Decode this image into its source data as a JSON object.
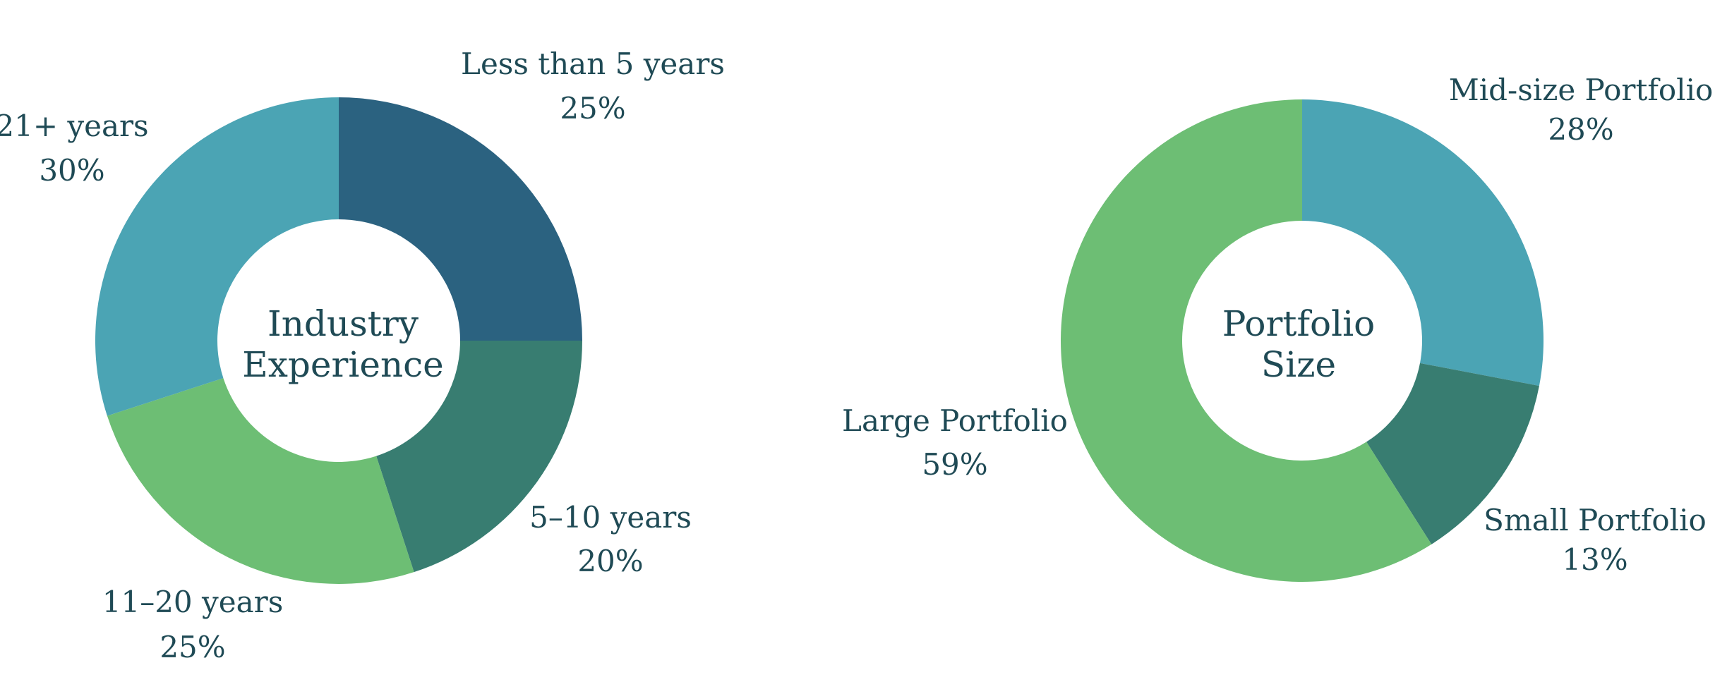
{
  "colors": {
    "text": "#1f4a55",
    "navy": "#2b6280",
    "teal_dark": "#387d71",
    "green": "#6dbe74",
    "teal_light": "#4ba4b4"
  },
  "chart_data": [
    {
      "type": "pie",
      "variant": "donut",
      "center_label": [
        "Industry",
        "Experience"
      ],
      "slices": [
        {
          "name": "Less than 5 years",
          "value": 25,
          "label": "25%",
          "color": "#2b6280"
        },
        {
          "name": "5–10 years",
          "value": 20,
          "label": "20%",
          "color": "#387d71"
        },
        {
          "name": "11–20 years",
          "value": 25,
          "label": "25%",
          "color": "#6dbe74"
        },
        {
          "name": "21+ years",
          "value": 30,
          "label": "30%",
          "color": "#4ba4b4"
        }
      ]
    },
    {
      "type": "pie",
      "variant": "donut",
      "center_label": [
        "Portfolio",
        "Size"
      ],
      "slices": [
        {
          "name": "Mid-size Portfolio",
          "value": 28,
          "label": "28%",
          "color": "#4ba4b4"
        },
        {
          "name": "Small Portfolio",
          "value": 13,
          "label": "13%",
          "color": "#387d71"
        },
        {
          "name": "Large Portfolio",
          "value": 59,
          "label": "59%",
          "color": "#6dbe74"
        }
      ]
    }
  ]
}
